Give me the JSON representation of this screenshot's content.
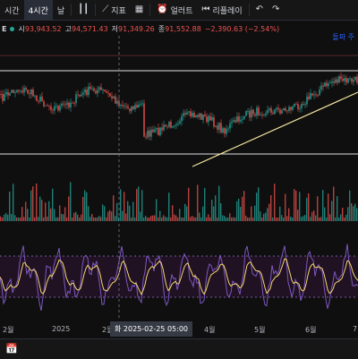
{
  "toolbar": {
    "interval_partial": "시간",
    "interval_active": "4시간",
    "interval_day": "날",
    "indicators_label": "지표",
    "alert_label": "얼러트",
    "replay_label": "리플레이"
  },
  "ohlc": {
    "symbol_partial": "E",
    "open_label": "시",
    "open_value": "93,943.52",
    "high_label": "고",
    "high_value": "94,571.43",
    "low_label": "저",
    "low_value": "91,349.26",
    "close_label": "종",
    "close_value": "91,552.88",
    "change": "−2,390.63 (−2.54%)"
  },
  "flag_text": "돌파 주",
  "x_axis": {
    "labels": [
      "2월",
      "2025",
      "2월",
      "4월",
      "5월",
      "6월",
      "7"
    ]
  },
  "crosshair_date": "화 2025-02-25   05:00",
  "colors": {
    "up": "#26a69a",
    "down": "#ef5350",
    "rsi_line": "#7e57c2",
    "rsi_signal": "#f5d76e",
    "trendline": "#f5e6a0",
    "band": "#9c27b0"
  }
}
